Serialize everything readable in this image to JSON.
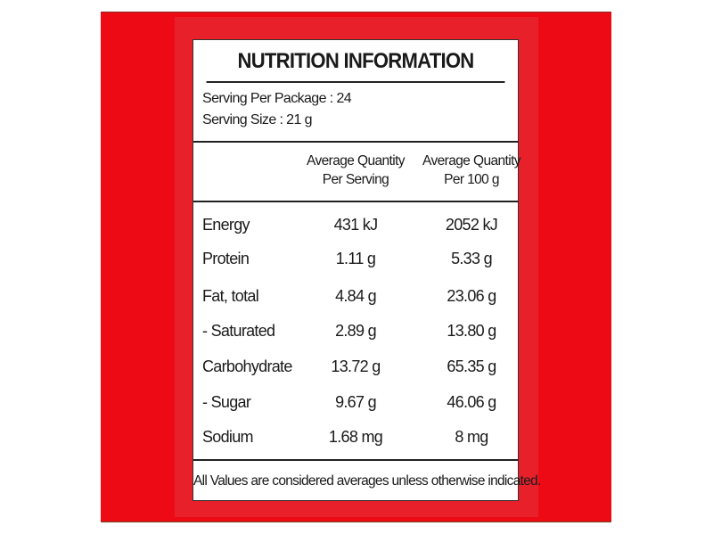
{
  "title": "NUTRITION INFORMATION",
  "serving_per_package": "Serving Per Package : 24",
  "serving_size": "Serving Size : 21 g",
  "columns": [
    {
      "line1": "Average Quantity",
      "line2": "Per Serving"
    },
    {
      "line1": "Average Quantity",
      "line2": "Per 100 g"
    }
  ],
  "rows": [
    {
      "label": "Energy",
      "per_serving": "431 kJ",
      "per_100g": "2052 kJ"
    },
    {
      "label": "Protein",
      "per_serving": "1.11 g",
      "per_100g": "5.33 g"
    },
    {
      "label": "Fat, total",
      "per_serving": "4.84 g",
      "per_100g": "23.06 g"
    },
    {
      "label": "- Saturated",
      "per_serving": "2.89 g",
      "per_100g": "13.80 g"
    },
    {
      "label": "Carbohydrate",
      "per_serving": "13.72 g",
      "per_100g": "65.35 g"
    },
    {
      "label": "- Sugar",
      "per_serving": "9.67 g",
      "per_100g": "46.06 g"
    },
    {
      "label": "Sodium",
      "per_serving": "1.68 mg",
      "per_100g": "8 mg"
    }
  ],
  "footer": "All Values are considered averages unless otherwise indicated.",
  "colors": {
    "background_red": "#ee0a14",
    "inner_red": "#e8202a",
    "panel": "#ffffff"
  }
}
